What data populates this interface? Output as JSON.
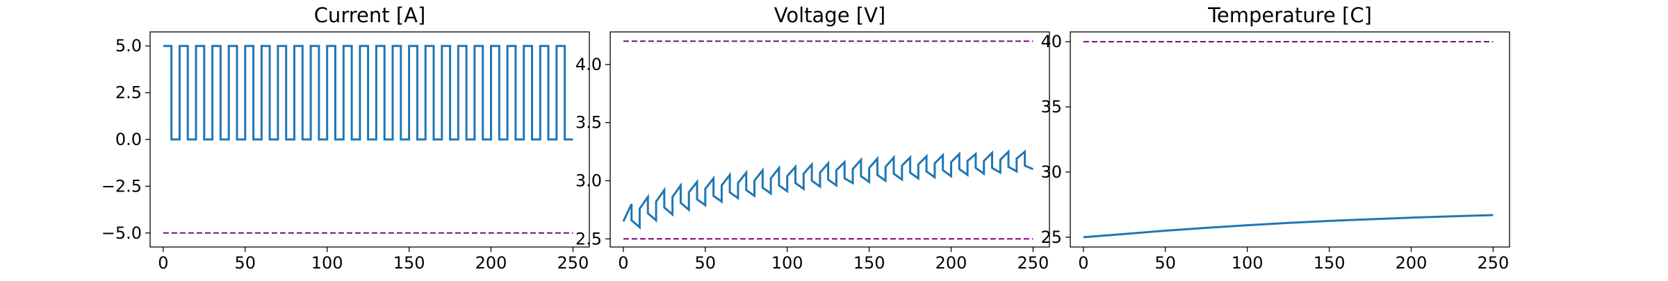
{
  "chart_data": [
    {
      "type": "line",
      "title": "Current [A]",
      "xlabel": "",
      "ylabel": "",
      "xlim": [
        -8,
        260
      ],
      "ylim": [
        -5.75,
        5.75
      ],
      "xticks": [
        0,
        50,
        100,
        150,
        200,
        250
      ],
      "yticks": [
        5.0,
        2.5,
        0.0,
        -2.5,
        -5.0
      ],
      "ytick_labels": [
        "5.0",
        "2.5",
        "0.0",
        "−2.5",
        "−5.0"
      ],
      "grid": false,
      "series": [
        {
          "color": "#1f77b4",
          "style": "step",
          "x": [
            0,
            5,
            5,
            10,
            10,
            15,
            15,
            20,
            20,
            25,
            25,
            30,
            30,
            35,
            35,
            40,
            40,
            45,
            45,
            50,
            50,
            55,
            55,
            60,
            60,
            65,
            65,
            70,
            70,
            75,
            75,
            80,
            80,
            85,
            85,
            90,
            90,
            95,
            95,
            100,
            100,
            105,
            105,
            110,
            110,
            115,
            115,
            120,
            120,
            125,
            125,
            130,
            130,
            135,
            135,
            140,
            140,
            145,
            145,
            150,
            150,
            155,
            155,
            160,
            160,
            165,
            165,
            170,
            170,
            175,
            175,
            180,
            180,
            185,
            185,
            190,
            190,
            195,
            195,
            200,
            200,
            205,
            205,
            210,
            210,
            215,
            215,
            220,
            220,
            225,
            225,
            230,
            230,
            235,
            235,
            240,
            240,
            245,
            245,
            250
          ],
          "y": [
            5,
            5,
            0,
            0,
            5,
            5,
            0,
            0,
            5,
            5,
            0,
            0,
            5,
            5,
            0,
            0,
            5,
            5,
            0,
            0,
            5,
            5,
            0,
            0,
            5,
            5,
            0,
            0,
            5,
            5,
            0,
            0,
            5,
            5,
            0,
            0,
            5,
            5,
            0,
            0,
            5,
            5,
            0,
            0,
            5,
            5,
            0,
            0,
            5,
            5,
            0,
            0,
            5,
            5,
            0,
            0,
            5,
            5,
            0,
            0,
            5,
            5,
            0,
            0,
            5,
            5,
            0,
            0,
            5,
            5,
            0,
            0,
            5,
            5,
            0,
            0,
            5,
            5,
            0,
            0,
            5,
            5,
            0,
            0,
            5,
            5,
            0,
            0,
            5,
            5,
            0,
            0,
            5,
            5,
            0,
            0,
            5,
            5,
            0,
            0
          ]
        },
        {
          "color": "#800080",
          "style": "dashed",
          "x": [
            0,
            250
          ],
          "y": [
            -5.0,
            -5.0
          ]
        }
      ]
    },
    {
      "type": "line",
      "title": "Voltage [V]",
      "xlabel": "",
      "ylabel": "",
      "xlim": [
        -8,
        260
      ],
      "ylim": [
        2.43,
        4.28
      ],
      "xticks": [
        0,
        50,
        100,
        150,
        200,
        250
      ],
      "yticks": [
        2.5,
        3.0,
        3.5,
        4.0
      ],
      "ytick_labels": [
        "2.5",
        "3.0",
        "3.5",
        "4.0"
      ],
      "grid": false,
      "series": [
        {
          "color": "#1f77b4",
          "style": "solid",
          "x": [
            0,
            5,
            5,
            10,
            10,
            15,
            15,
            20,
            20,
            25,
            25,
            30,
            30,
            35,
            35,
            40,
            40,
            45,
            45,
            50,
            50,
            55,
            55,
            60,
            60,
            65,
            65,
            70,
            70,
            75,
            75,
            80,
            80,
            85,
            85,
            90,
            90,
            95,
            95,
            100,
            100,
            105,
            105,
            110,
            110,
            115,
            115,
            120,
            120,
            125,
            125,
            130,
            130,
            135,
            135,
            140,
            140,
            145,
            145,
            150,
            150,
            155,
            155,
            160,
            160,
            165,
            165,
            170,
            170,
            175,
            175,
            180,
            180,
            185,
            185,
            190,
            190,
            195,
            195,
            200,
            200,
            205,
            205,
            210,
            210,
            215,
            215,
            220,
            220,
            225,
            225,
            230,
            230,
            235,
            235,
            240,
            240,
            245,
            245,
            250
          ],
          "y": [
            2.65,
            2.8,
            2.66,
            2.6,
            2.76,
            2.86,
            2.72,
            2.66,
            2.82,
            2.92,
            2.77,
            2.71,
            2.86,
            2.96,
            2.81,
            2.75,
            2.9,
            2.99,
            2.84,
            2.79,
            2.93,
            3.02,
            2.87,
            2.82,
            2.96,
            3.05,
            2.9,
            2.85,
            2.98,
            3.07,
            2.92,
            2.87,
            3.0,
            3.09,
            2.94,
            2.89,
            3.02,
            3.11,
            2.96,
            2.91,
            3.04,
            3.12,
            2.98,
            2.93,
            3.06,
            3.14,
            3.0,
            2.95,
            3.07,
            3.15,
            3.01,
            2.96,
            3.09,
            3.16,
            3.02,
            2.98,
            3.1,
            3.18,
            3.04,
            2.99,
            3.11,
            3.19,
            3.05,
            3.0,
            3.12,
            3.2,
            3.06,
            3.01,
            3.13,
            3.2,
            3.07,
            3.02,
            3.14,
            3.21,
            3.08,
            3.03,
            3.15,
            3.22,
            3.09,
            3.04,
            3.16,
            3.23,
            3.1,
            3.05,
            3.17,
            3.23,
            3.11,
            3.06,
            3.17,
            3.24,
            3.11,
            3.07,
            3.18,
            3.25,
            3.12,
            3.08,
            3.19,
            3.25,
            3.13,
            3.1
          ]
        },
        {
          "color": "#800080",
          "style": "dashed",
          "x": [
            0,
            250
          ],
          "y": [
            2.5,
            2.5
          ]
        },
        {
          "color": "#800080",
          "style": "dashed",
          "x": [
            0,
            250
          ],
          "y": [
            4.2,
            4.2
          ]
        }
      ]
    },
    {
      "type": "line",
      "title": "Temperature [C]",
      "xlabel": "",
      "ylabel": "",
      "xlim": [
        -8,
        260
      ],
      "ylim": [
        24.25,
        40.75
      ],
      "xticks": [
        0,
        50,
        100,
        150,
        200,
        250
      ],
      "yticks": [
        25,
        30,
        35,
        40
      ],
      "ytick_labels": [
        "25",
        "30",
        "35",
        "40"
      ],
      "grid": false,
      "series": [
        {
          "color": "#1f77b4",
          "style": "solid",
          "x": [
            0,
            25,
            50,
            75,
            100,
            125,
            150,
            175,
            200,
            225,
            250
          ],
          "y": [
            25.0,
            25.25,
            25.5,
            25.72,
            25.92,
            26.1,
            26.25,
            26.38,
            26.5,
            26.6,
            26.7
          ]
        },
        {
          "color": "#800080",
          "style": "dashed",
          "x": [
            0,
            250
          ],
          "y": [
            40.0,
            40.0
          ]
        }
      ]
    }
  ]
}
